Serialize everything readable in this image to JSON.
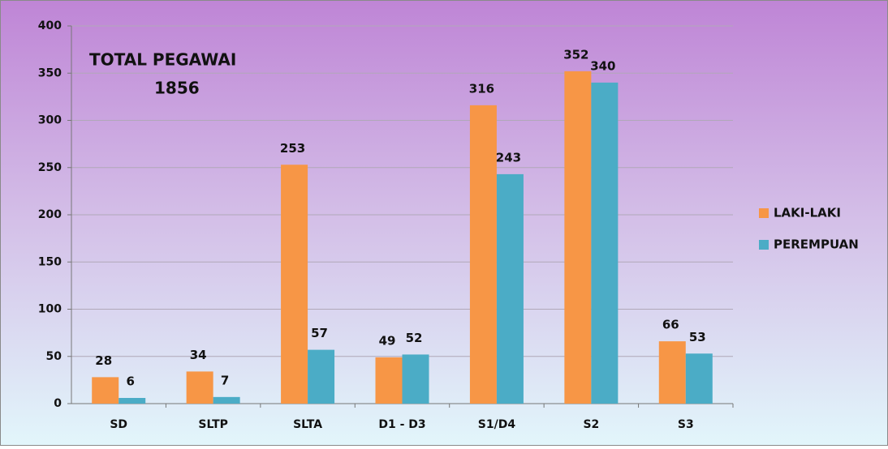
{
  "chart_data": {
    "type": "bar",
    "annotations": [
      "TOTAL PEGAWAI",
      "1856"
    ],
    "categories": [
      "SD",
      "SLTP",
      "SLTA",
      "D1 - D3",
      "S1/D4",
      "S2",
      "S3"
    ],
    "series": [
      {
        "name": "LAKI-LAKI",
        "color": "#f79646",
        "values": [
          28,
          34,
          253,
          49,
          316,
          352,
          66
        ]
      },
      {
        "name": "PEREMPUAN",
        "color": "#4bacc6",
        "values": [
          6,
          7,
          57,
          52,
          243,
          340,
          53
        ]
      }
    ],
    "ylim": [
      0,
      400
    ],
    "yticks": [
      0,
      50,
      100,
      150,
      200,
      250,
      300,
      350,
      400
    ],
    "grid": true,
    "legend": "right"
  }
}
